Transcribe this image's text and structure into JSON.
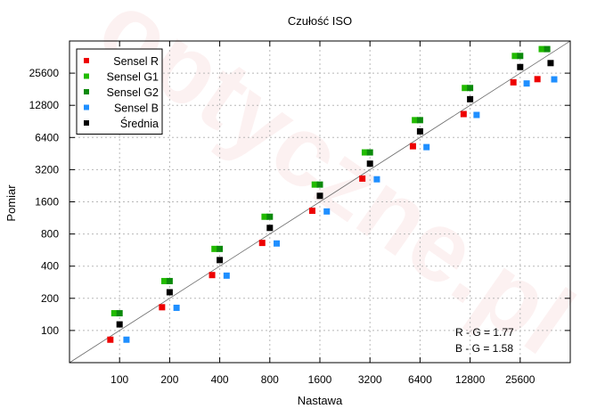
{
  "chart_data": {
    "type": "scatter",
    "title": "Czułość ISO",
    "xlabel": "Nastawa",
    "ylabel": "Pomiar",
    "x_scale": "log2",
    "y_scale": "log2",
    "xlim": [
      50,
      51200
    ],
    "ylim": [
      50,
      51200
    ],
    "x_ticks": [
      "100",
      "200",
      "400",
      "800",
      "1600",
      "3200",
      "6400",
      "12800",
      "25600"
    ],
    "y_ticks": [
      "100",
      "200",
      "400",
      "800",
      "1600",
      "3200",
      "6400",
      "12800",
      "25600"
    ],
    "grid": true,
    "legend_position": "top-left",
    "reference_line": "y = x",
    "watermark": "optyczne.pl",
    "series": [
      {
        "name": "Sensel R",
        "color": "#ee0000",
        "x": [
          88,
          180,
          360,
          720,
          1440,
          2880,
          5800,
          11700,
          23300,
          32500
        ],
        "y": [
          82,
          165,
          330,
          660,
          1320,
          2640,
          5300,
          10600,
          21000,
          22500
        ]
      },
      {
        "name": "Sensel G1",
        "color": "#22bb00",
        "x": [
          93,
          186,
          372,
          744,
          1490,
          2980,
          5960,
          11900,
          23800,
          34500
        ],
        "y": [
          145,
          290,
          580,
          1160,
          2320,
          4640,
          9300,
          18600,
          37100,
          43000
        ]
      },
      {
        "name": "Sensel G2",
        "color": "#0c8a0c",
        "x": [
          100,
          200,
          400,
          800,
          1600,
          3200,
          6400,
          12800,
          25600,
          37200
        ],
        "y": [
          145,
          290,
          580,
          1160,
          2320,
          4640,
          9300,
          18600,
          37100,
          43000
        ]
      },
      {
        "name": "Sensel B",
        "color": "#1f8fff",
        "x": [
          110,
          220,
          440,
          880,
          1760,
          3520,
          7000,
          14000,
          28000,
          41000
        ],
        "y": [
          82,
          163,
          326,
          652,
          1300,
          2600,
          5200,
          10400,
          20500,
          22400
        ]
      },
      {
        "name": "Średnia",
        "color": "#000000",
        "x": [
          100,
          200,
          400,
          800,
          1600,
          3200,
          6400,
          12800,
          25600,
          39000
        ],
        "y": [
          114,
          228,
          456,
          912,
          1820,
          3640,
          7300,
          14600,
          29200,
          31800
        ]
      }
    ],
    "annotations": [
      "R - G = 1.77",
      "B - G = 1.58"
    ]
  }
}
